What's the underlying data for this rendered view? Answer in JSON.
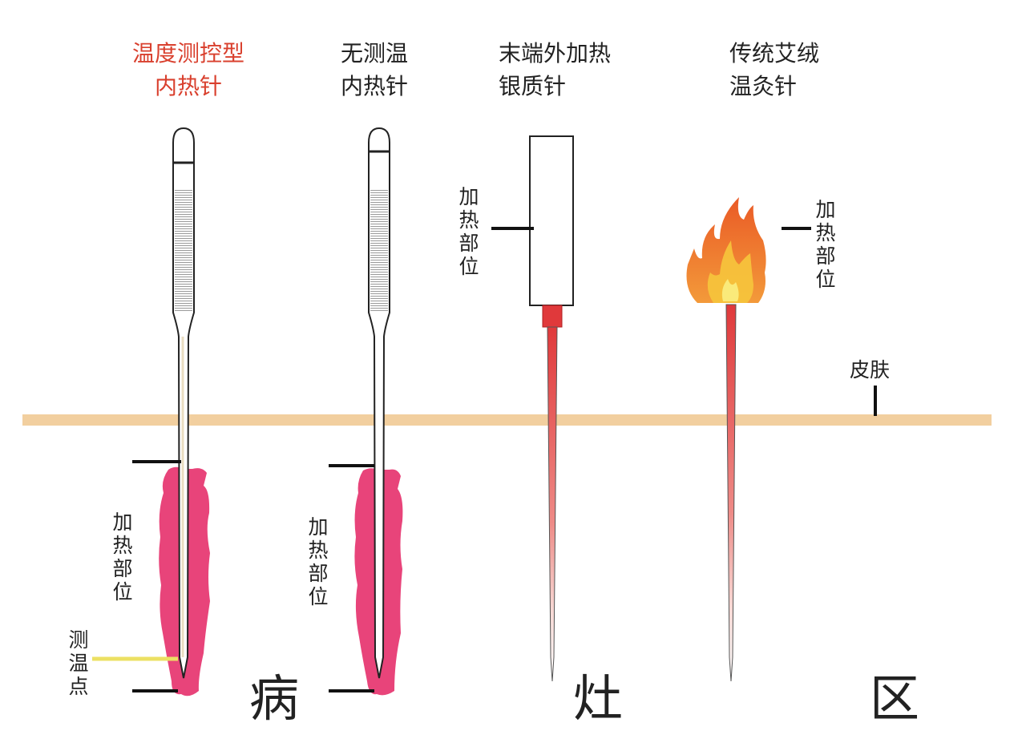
{
  "columns": [
    {
      "title_line1": "温度测控型",
      "title_line2": "内热针",
      "title_color": "#d9402e"
    },
    {
      "title_line1": "无测温",
      "title_line2": "内热针"
    },
    {
      "title_line1": "末端外加热",
      "title_line2": "银质针"
    },
    {
      "title_line1": "传统艾绒",
      "title_line2": "温灸针"
    }
  ],
  "labels": {
    "heating_part": [
      "加",
      "热",
      "部",
      "位"
    ],
    "temp_point": [
      "测",
      "温",
      "点"
    ],
    "skin": "皮肤"
  },
  "lesion_area": [
    "病",
    "灶",
    "区"
  ],
  "colors": {
    "skin": "#f2cf9f",
    "lesion": "#e8447a",
    "heated_needle": "#e0393b",
    "temp_point_line": "#ece063",
    "flame": "#f07a2c"
  }
}
